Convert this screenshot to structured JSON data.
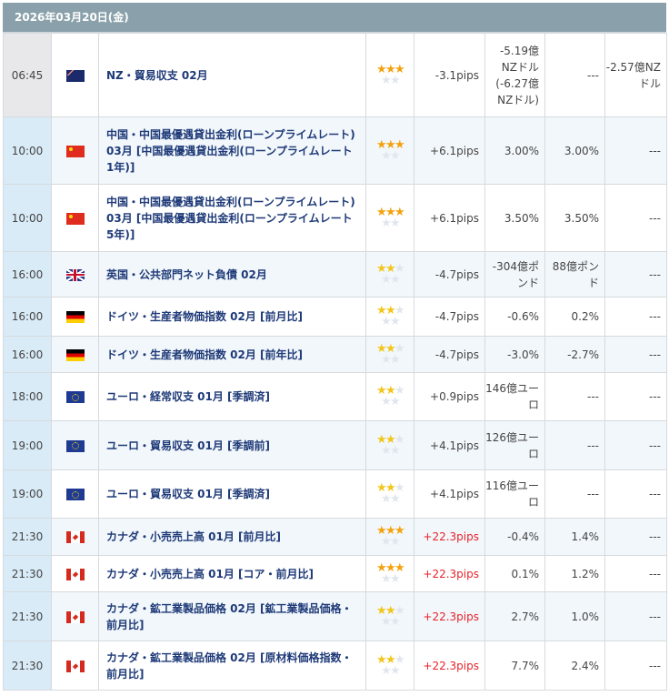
{
  "date_header": "2026年03月20日(金)",
  "colors": {
    "header_bg": "#8aa1ab",
    "name_text": "#1e3a78",
    "positive_pips": "#e8232a",
    "star_high": "#f4a20c",
    "star_mid": "#f2c619",
    "star_empty": "#e1e6ee",
    "time_cell": "#d9ebf7"
  },
  "rows": [
    {
      "time": "06:45",
      "flag": "nz",
      "name": "NZ・貿易収支 02月",
      "importance": 3,
      "pips": "-3.1pips",
      "positive": false,
      "previous": "-5.19億NZドル(-6.27億NZドル)",
      "forecast": "---",
      "actual": "-2.57億NZドル"
    },
    {
      "time": "10:00",
      "flag": "cn",
      "name": "中国・中国最優遇貸出金利(ローンプライムレート) 03月 [中国最優遇貸出金利(ローンプライムレート　1年)]",
      "importance": 3,
      "pips": "+6.1pips",
      "positive": false,
      "previous": "3.00%",
      "forecast": "3.00%",
      "actual": "---"
    },
    {
      "time": "10:00",
      "flag": "cn",
      "name": "中国・中国最優遇貸出金利(ローンプライムレート) 03月 [中国最優遇貸出金利(ローンプライムレート　5年)]",
      "importance": 3,
      "pips": "+6.1pips",
      "positive": false,
      "previous": "3.50%",
      "forecast": "3.50%",
      "actual": "---"
    },
    {
      "time": "16:00",
      "flag": "gb",
      "name": "英国・公共部門ネット負債 02月",
      "importance": 2,
      "pips": "-4.7pips",
      "positive": false,
      "previous": "-304億ポンド",
      "forecast": "88億ポンド",
      "actual": "---"
    },
    {
      "time": "16:00",
      "flag": "de",
      "name": "ドイツ・生産者物価指数 02月 [前月比]",
      "importance": 2,
      "pips": "-4.7pips",
      "positive": false,
      "previous": "-0.6%",
      "forecast": "0.2%",
      "actual": "---"
    },
    {
      "time": "16:00",
      "flag": "de",
      "name": "ドイツ・生産者物価指数 02月 [前年比]",
      "importance": 2,
      "pips": "-4.7pips",
      "positive": false,
      "previous": "-3.0%",
      "forecast": "-2.7%",
      "actual": "---"
    },
    {
      "time": "18:00",
      "flag": "eu",
      "name": "ユーロ・経常収支 01月 [季調済]",
      "importance": 2,
      "pips": "+0.9pips",
      "positive": false,
      "previous": "146億ユーロ",
      "forecast": "---",
      "actual": "---"
    },
    {
      "time": "19:00",
      "flag": "eu",
      "name": "ユーロ・貿易収支 01月 [季調前]",
      "importance": 2,
      "pips": "+4.1pips",
      "positive": false,
      "previous": "126億ユーロ",
      "forecast": "---",
      "actual": "---"
    },
    {
      "time": "19:00",
      "flag": "eu",
      "name": "ユーロ・貿易収支 01月 [季調済]",
      "importance": 2,
      "pips": "+4.1pips",
      "positive": false,
      "previous": "116億ユーロ",
      "forecast": "---",
      "actual": "---"
    },
    {
      "time": "21:30",
      "flag": "ca",
      "name": "カナダ・小売売上高 01月 [前月比]",
      "importance": 3,
      "pips": "+22.3pips",
      "positive": true,
      "previous": "-0.4%",
      "forecast": "1.4%",
      "actual": "---"
    },
    {
      "time": "21:30",
      "flag": "ca",
      "name": "カナダ・小売売上高 01月 [コア・前月比]",
      "importance": 3,
      "pips": "+22.3pips",
      "positive": true,
      "previous": "0.1%",
      "forecast": "1.2%",
      "actual": "---"
    },
    {
      "time": "21:30",
      "flag": "ca",
      "name": "カナダ・鉱工業製品価格 02月 [鉱工業製品価格・前月比]",
      "importance": 2,
      "pips": "+22.3pips",
      "positive": true,
      "previous": "2.7%",
      "forecast": "1.0%",
      "actual": "---"
    },
    {
      "time": "21:30",
      "flag": "ca",
      "name": "カナダ・鉱工業製品価格 02月 [原材料価格指数・前月比]",
      "importance": 2,
      "pips": "+22.3pips",
      "positive": true,
      "previous": "7.7%",
      "forecast": "2.4%",
      "actual": "---"
    }
  ]
}
